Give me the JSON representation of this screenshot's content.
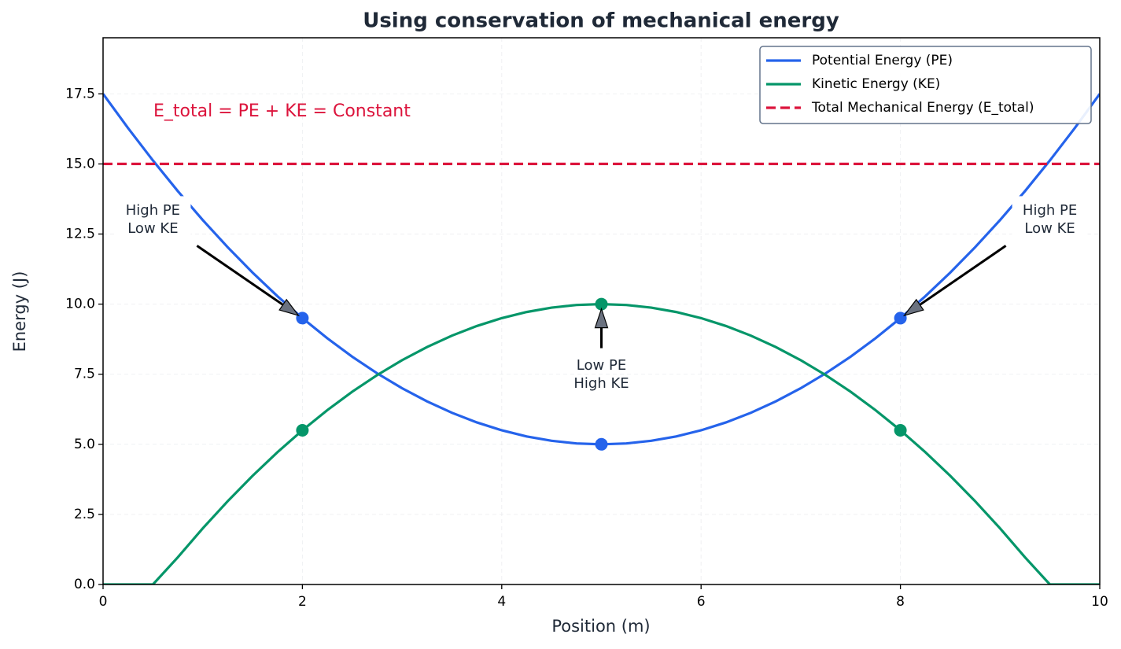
{
  "chart_data": {
    "type": "line",
    "title": "Using conservation of mechanical energy",
    "x_label": "Position (m)",
    "y_label": "Energy (J)",
    "x": [
      0,
      0.25,
      0.5,
      0.75,
      1,
      1.25,
      1.5,
      1.75,
      2,
      2.25,
      2.5,
      2.75,
      3,
      3.25,
      3.5,
      3.75,
      4,
      4.25,
      4.5,
      4.75,
      5,
      5.25,
      5.5,
      5.75,
      6,
      6.25,
      6.5,
      6.75,
      7,
      7.25,
      7.5,
      7.75,
      8,
      8.25,
      8.5,
      8.75,
      9,
      9.25,
      9.5,
      9.75,
      10
    ],
    "marker_x": [
      2,
      5,
      8
    ],
    "series": [
      {
        "name": "Potential Energy (PE)",
        "color": "#2563eb",
        "style": "solid",
        "values": [
          17.5,
          16.28125,
          15.125,
          14.03125,
          13,
          12.03125,
          11.125,
          10.28125,
          9.5,
          8.78125,
          8.125,
          7.53125,
          7,
          6.53125,
          6.125,
          5.78125,
          5.5,
          5.28125,
          5.125,
          5.03125,
          5,
          5.03125,
          5.125,
          5.28125,
          5.5,
          5.78125,
          6.125,
          6.53125,
          7,
          7.53125,
          8.125,
          8.78125,
          9.5,
          10.28125,
          11.125,
          12.03125,
          13,
          14.03125,
          15.125,
          16.28125,
          17.5
        ],
        "marker_values": [
          9.5,
          5,
          9.5
        ]
      },
      {
        "name": "Kinetic Energy (KE)",
        "color": "#059669",
        "style": "solid",
        "values": [
          0,
          0,
          0,
          0.96875,
          2,
          2.96875,
          3.875,
          4.71875,
          5.5,
          6.21875,
          6.875,
          7.46875,
          8,
          8.46875,
          8.875,
          9.21875,
          9.5,
          9.71875,
          9.875,
          9.96875,
          10,
          9.96875,
          9.875,
          9.71875,
          9.5,
          9.21875,
          8.875,
          8.46875,
          8,
          7.46875,
          6.875,
          6.21875,
          5.5,
          4.71875,
          3.875,
          2.96875,
          2,
          0.96875,
          0,
          0,
          0
        ],
        "marker_values": [
          5.5,
          10,
          5.5
        ]
      },
      {
        "name": "Total Mechanical Energy (E_total)",
        "color": "#dc143c",
        "style": "dashed",
        "x": [
          0,
          10
        ],
        "values": [
          15,
          15
        ]
      }
    ],
    "equation": "E_total = PE + KE = Constant",
    "annotations": [
      [
        "High PE",
        "Low KE"
      ],
      [
        "Low PE",
        "High KE"
      ],
      [
        "High PE",
        "Low KE"
      ]
    ],
    "xlim": [
      0,
      10
    ],
    "xticks": [
      0,
      2,
      4,
      6,
      8,
      10
    ],
    "ylim": [
      0,
      19.5
    ],
    "yticks": [
      {
        "value": 0,
        "label": "0.0"
      },
      2.5,
      {
        "value": 5,
        "label": "5.0"
      },
      7.5,
      {
        "value": 10,
        "label": "10.0"
      },
      12.5,
      {
        "value": 15,
        "label": "15.0"
      },
      17.5
    ],
    "grid": true,
    "legend": "upper right"
  }
}
